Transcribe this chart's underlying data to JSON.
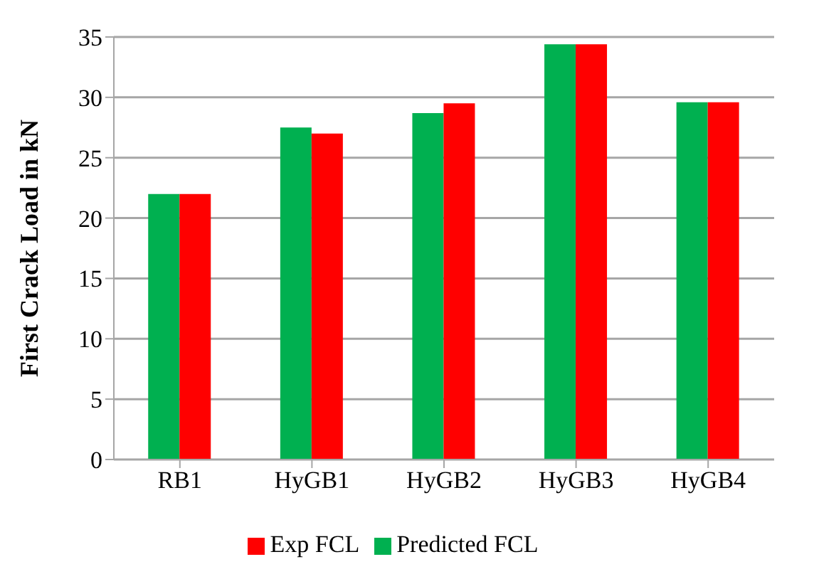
{
  "chart_data": {
    "type": "bar",
    "ylabel": "First Crack Load in kN",
    "categories": [
      "RB1",
      "HyGB1",
      "HyGB2",
      "HyGB3",
      "HyGB4"
    ],
    "series": [
      {
        "name": "Predicted FCL",
        "color": "#00b050",
        "values": [
          22.0,
          27.5,
          28.7,
          34.4,
          29.6
        ]
      },
      {
        "name": "Exp FCL",
        "color": "#ff0000",
        "values": [
          22.0,
          27.0,
          29.5,
          34.4,
          29.6
        ]
      }
    ],
    "ylim": [
      0,
      35
    ],
    "yticks": [
      0,
      5,
      10,
      15,
      20,
      25,
      30,
      35
    ],
    "grid": "y",
    "legend": "bottom"
  }
}
